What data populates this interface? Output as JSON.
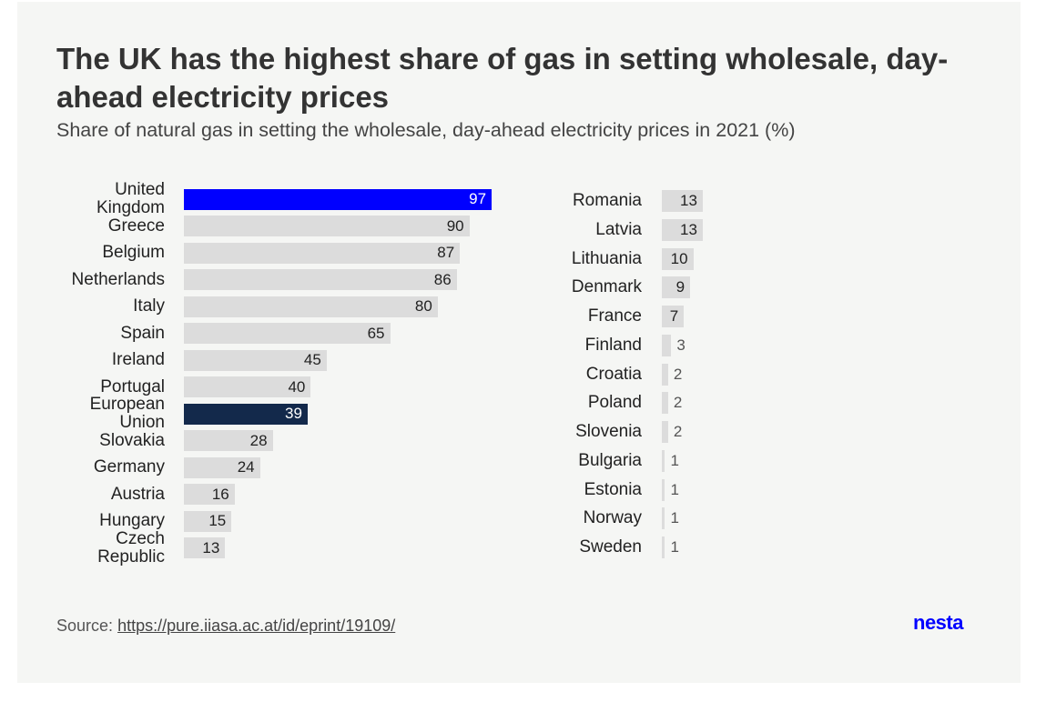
{
  "header": {
    "title": "The UK has the highest share of gas in setting wholesale, day-ahead electricity prices",
    "subtitle": "Share of natural gas in setting the wholesale, day-ahead electricity prices in 2021 (%)"
  },
  "footer": {
    "source_prefix": "Source:",
    "source_link": "https://pure.iiasa.ac.at/id/eprint/19109/",
    "logo": "nesta"
  },
  "colors": {
    "highlight_uk": "#0000ff",
    "highlight_eu": "#13294b",
    "default": "#dcdcdc"
  },
  "chart_data": {
    "type": "bar",
    "orientation": "horizontal",
    "title": "The UK has the highest share of gas in setting wholesale, day-ahead electricity prices",
    "subtitle": "Share of natural gas in setting the wholesale, day-ahead electricity prices in 2021 (%)",
    "xlabel": "",
    "ylabel": "",
    "xlim": [
      0,
      100
    ],
    "panels": [
      {
        "categories": [
          "United Kingdom",
          "Greece",
          "Belgium",
          "Netherlands",
          "Italy",
          "Spain",
          "Ireland",
          "Portugal",
          "European Union",
          "Slovakia",
          "Germany",
          "Austria",
          "Hungary",
          "Czech Republic"
        ],
        "values": [
          97,
          90,
          87,
          86,
          80,
          65,
          45,
          40,
          39,
          28,
          24,
          16,
          15,
          13
        ],
        "highlight": {
          "United Kingdom": "uk",
          "European Union": "eu"
        }
      },
      {
        "categories": [
          "Romania",
          "Latvia",
          "Lithuania",
          "Denmark",
          "France",
          "Finland",
          "Croatia",
          "Poland",
          "Slovenia",
          "Bulgaria",
          "Estonia",
          "Norway",
          "Sweden"
        ],
        "values": [
          13,
          13,
          10,
          9,
          7,
          3,
          2,
          2,
          2,
          1,
          1,
          1,
          1
        ],
        "highlight": {}
      }
    ]
  }
}
